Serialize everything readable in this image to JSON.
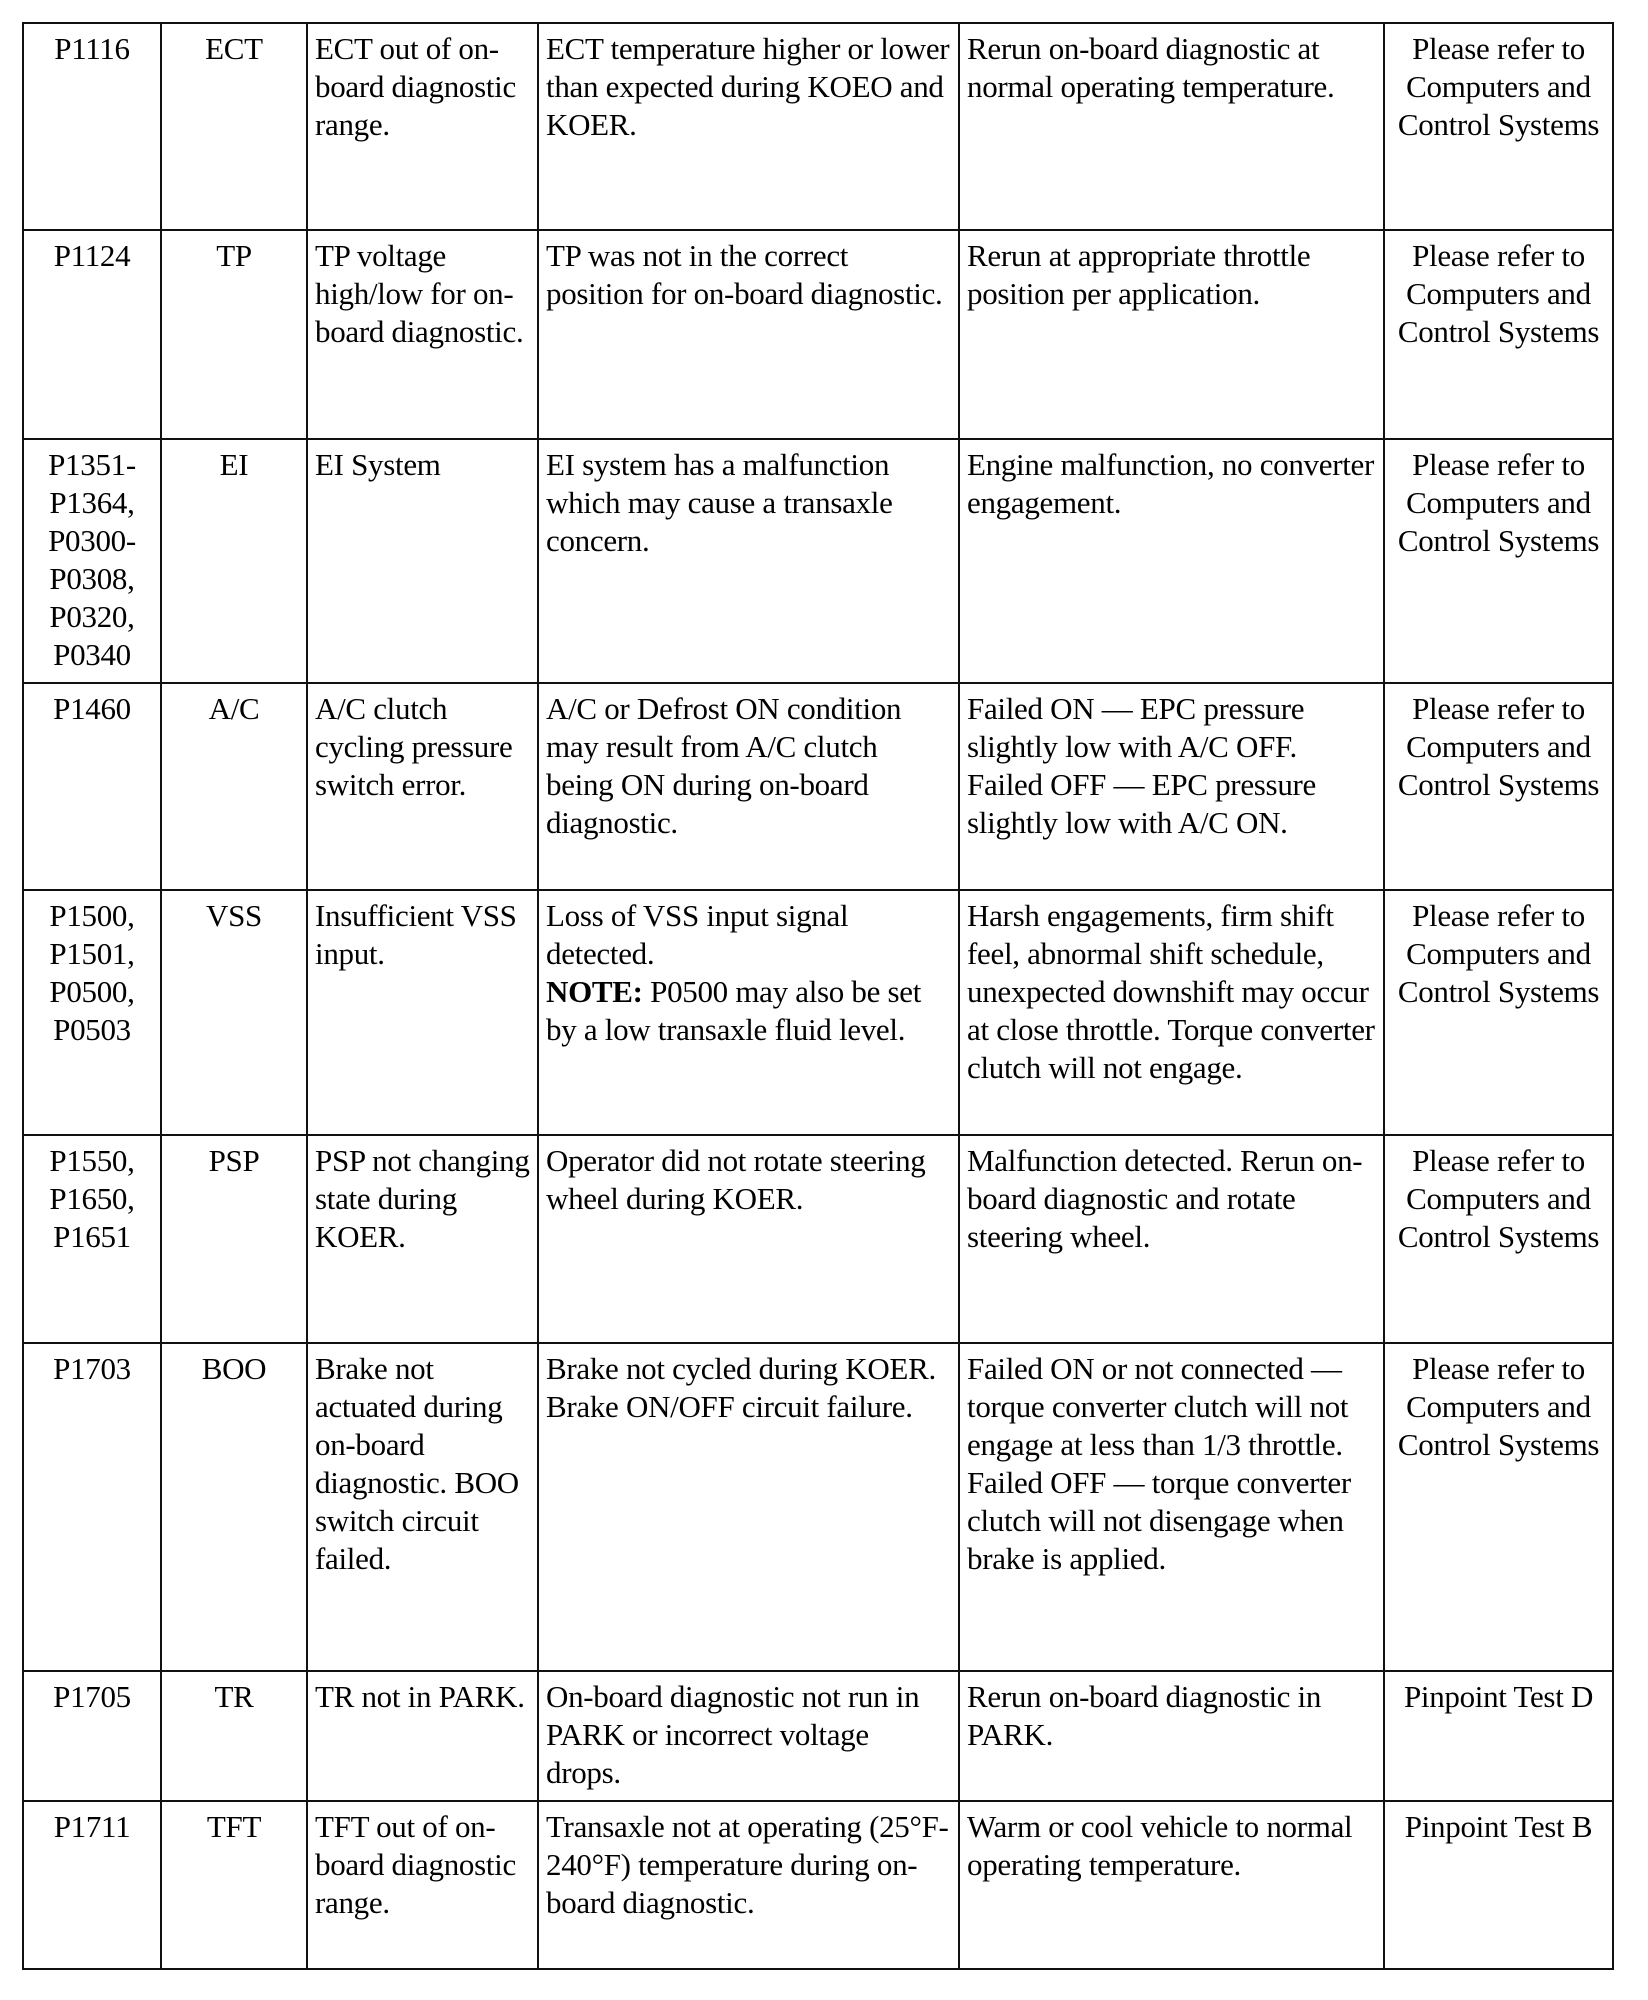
{
  "rows": [
    {
      "code": "P1116",
      "component": "ECT",
      "description": "ECT out of on-board diagnostic range.",
      "condition": "ECT temperature higher or lower than expected during KOEO and KOER.",
      "symptom": "Rerun on-board diagnostic at normal operating temperature.",
      "action": "Please refer to Computers and Control Systems"
    },
    {
      "code": "P1124",
      "component": "TP",
      "description": "TP voltage high/low for on-board diagnostic.",
      "condition": "TP was not in the correct position for on-board diagnostic.",
      "symptom": "Rerun at appropriate throttle position per application.",
      "action": "Please refer to Computers and Control Systems"
    },
    {
      "code": "P1351-P1364, P0300-P0308, P0320, P0340",
      "component": "EI",
      "description": "EI System",
      "condition": "EI system has a malfunction which may cause a transaxle concern.",
      "symptom": "Engine malfunction, no converter engagement.",
      "action": "Please refer to Computers and Control Systems"
    },
    {
      "code": "P1460",
      "component": "A/C",
      "description": "A/C clutch cycling pressure switch error.",
      "condition": "A/C or Defrost ON condition may result from A/C clutch being ON during on-board diagnostic.",
      "symptom": "Failed ON — EPC pressure slightly low with A/C OFF. Failed OFF — EPC pressure slightly low with A/C ON.",
      "action": "Please refer to Computers and Control Systems"
    },
    {
      "code": "P1500, P1501, P0500, P0503",
      "component": "VSS",
      "description": "Insufficient VSS input.",
      "condition": "Loss of VSS input signal detected.",
      "note_label": "NOTE:",
      "note_text": " P0500 may also be set by a low transaxle fluid level.",
      "symptom": "Harsh engagements, firm shift feel, abnormal shift schedule, unexpected downshift may occur at close throttle. Torque converter clutch will not engage.",
      "action": "Please refer to Computers and Control Systems"
    },
    {
      "code": "P1550, P1650, P1651",
      "component": "PSP",
      "description": "PSP not changing state during KOER.",
      "condition": "Operator did not rotate steering wheel during KOER.",
      "symptom": "Malfunction detected. Rerun on-board diagnostic and rotate steering wheel.",
      "action": "Please refer to Computers and Control Systems"
    },
    {
      "code": "P1703",
      "component": "BOO",
      "description": "Brake not actuated during on-board diagnostic. BOO switch circuit failed.",
      "condition": "Brake not cycled during KOER. Brake ON/OFF circuit failure.",
      "symptom": "Failed ON or not connected — torque converter clutch will not engage at less than 1/3 throttle. Failed OFF — torque converter clutch will not disengage when brake is applied.",
      "action": "Please refer to Computers and Control Systems"
    },
    {
      "code": "P1705",
      "component": "TR",
      "description": "TR not in PARK.",
      "condition": "On-board diagnostic not run in PARK or incorrect voltage drops.",
      "symptom": "Rerun on-board diagnostic in PARK.",
      "action": "Pinpoint Test D"
    },
    {
      "code": "P1711",
      "component": "TFT",
      "description": "TFT out of on-board diagnostic range.",
      "condition": "Transaxle not at operating (25°F-240°F) temperature during on-board diagnostic.",
      "symptom": "Warm or cool vehicle to normal operating temperature.",
      "action": "Pinpoint Test B"
    }
  ]
}
